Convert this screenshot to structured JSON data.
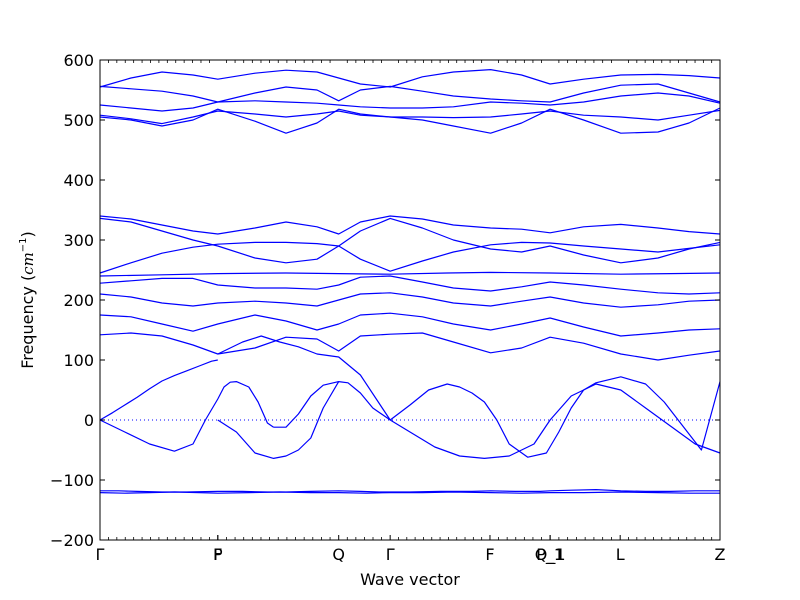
{
  "chart_data": {
    "type": "line",
    "xlabel": "Wave vector",
    "ylabel_prefix": "Frequency (",
    "ylabel_unit": "cm",
    "ylabel_exponent": "−1",
    "ylabel_suffix": ")",
    "ylim": [
      -200,
      600
    ],
    "yticks": [
      600,
      500,
      400,
      300,
      200,
      100,
      0,
      -100,
      -200
    ],
    "ytick_labels": [
      "600",
      "500",
      "400",
      "300",
      "200",
      "100",
      "0",
      "−100",
      "−200"
    ],
    "xlim": [
      0,
      1
    ],
    "kpoints": [
      {
        "label": "Γ",
        "x": 0.0
      },
      {
        "label": "F",
        "x": 0.19
      },
      {
        "label": "P",
        "x": 0.19
      },
      {
        "label": "Q",
        "x": 0.385
      },
      {
        "label": "Γ",
        "x": 0.468
      },
      {
        "label": "F",
        "x": 0.629
      },
      {
        "label": "P_1",
        "x": 0.726
      },
      {
        "label": "Q_1",
        "x": 0.726
      },
      {
        "label": "L",
        "x": 0.839
      },
      {
        "label": "Z",
        "x": 1.0
      }
    ],
    "zero_line": {
      "y": 0,
      "style": "dotted"
    },
    "series_color": "#0000ff",
    "series": [
      {
        "x": [
          0,
          0.03,
          0.06,
          0.1,
          0.14,
          0.19,
          0.23,
          0.27,
          0.3,
          0.34,
          0.385,
          0.42,
          0.45,
          0.468,
          0.5,
          0.55,
          0.6,
          0.63,
          0.67,
          0.71,
          0.726,
          0.76,
          0.8,
          0.84,
          0.88,
          0.92,
          0.96,
          1.0
        ],
        "values": [
          -118,
          -118,
          -119,
          -120,
          -120,
          -119,
          -119,
          -120,
          -120,
          -119,
          -118,
          -119,
          -120,
          -120,
          -120,
          -119,
          -119,
          -118,
          -119,
          -119,
          -118,
          -117,
          -116,
          -118,
          -119,
          -119,
          -118,
          -118
        ]
      },
      {
        "x": [
          0,
          0.04,
          0.08,
          0.12,
          0.16,
          0.19,
          0.24,
          0.29,
          0.34,
          0.385,
          0.43,
          0.468,
          0.52,
          0.57,
          0.63,
          0.68,
          0.726,
          0.78,
          0.84,
          0.9,
          0.95,
          1.0
        ],
        "values": [
          -121,
          -122,
          -121,
          -120,
          -121,
          -122,
          -121,
          -120,
          -121,
          -121,
          -122,
          -121,
          -121,
          -120,
          -121,
          -122,
          -121,
          -121,
          -120,
          -121,
          -122,
          -122
        ]
      },
      {
        "x": [
          0,
          0.02,
          0.04,
          0.06,
          0.08,
          0.1,
          0.12,
          0.14,
          0.16,
          0.18,
          0.19
        ],
        "values": [
          0,
          12,
          25,
          38,
          52,
          65,
          74,
          82,
          90,
          98,
          100
        ]
      },
      {
        "x": [
          0.19,
          0.23,
          0.26,
          0.29,
          0.32,
          0.35,
          0.385,
          0.42,
          0.468
        ],
        "values": [
          110,
          130,
          140,
          130,
          122,
          110,
          105,
          75,
          0
        ]
      },
      {
        "x": [
          0,
          0.04,
          0.08,
          0.12,
          0.15,
          0.17,
          0.19,
          0.2,
          0.21,
          0.22,
          0.24,
          0.255,
          0.27,
          0.28
        ],
        "values": [
          0,
          -20,
          -40,
          -52,
          -40,
          0,
          35,
          55,
          63,
          64,
          55,
          30,
          -5,
          -12
        ]
      },
      {
        "x": [
          0.28,
          0.3,
          0.32,
          0.34,
          0.36,
          0.385,
          0.4,
          0.42,
          0.44,
          0.468
        ],
        "values": [
          -12,
          -12,
          10,
          40,
          58,
          64,
          62,
          45,
          20,
          0
        ]
      },
      {
        "x": [
          0.19,
          0.22,
          0.25,
          0.28,
          0.3,
          0.32,
          0.34,
          0.36,
          0.385
        ],
        "values": [
          0,
          -20,
          -55,
          -64,
          -60,
          -50,
          -30,
          20,
          64
        ]
      },
      {
        "x": [
          0.468,
          0.5,
          0.53,
          0.56,
          0.58,
          0.6,
          0.62,
          0.64,
          0.66,
          0.69,
          0.72,
          0.74,
          0.76,
          0.78,
          0.8,
          0.84,
          0.88,
          0.91,
          0.94,
          0.97,
          1.0
        ],
        "values": [
          0,
          25,
          50,
          60,
          55,
          45,
          30,
          0,
          -40,
          -62,
          -55,
          -20,
          20,
          50,
          62,
          72,
          60,
          30,
          -10,
          -50,
          64
        ]
      },
      {
        "x": [
          0.468,
          0.5,
          0.54,
          0.58,
          0.62,
          0.66,
          0.7,
          0.726,
          0.76,
          0.8,
          0.84,
          0.88,
          0.92,
          0.96,
          1.0
        ],
        "values": [
          0,
          -20,
          -45,
          -60,
          -64,
          -60,
          -40,
          0,
          40,
          60,
          50,
          20,
          -10,
          -40,
          -55
        ]
      },
      {
        "x": [
          0,
          0.05,
          0.1,
          0.15,
          0.19,
          0.25,
          0.3,
          0.35,
          0.385,
          0.42,
          0.468,
          0.52,
          0.57,
          0.63,
          0.68,
          0.726,
          0.78,
          0.84,
          0.9,
          0.95,
          1.0
        ],
        "values": [
          142,
          145,
          140,
          125,
          110,
          120,
          138,
          135,
          115,
          140,
          143,
          145,
          130,
          112,
          120,
          138,
          128,
          110,
          100,
          108,
          115
        ]
      },
      {
        "x": [
          0,
          0.05,
          0.1,
          0.15,
          0.19,
          0.25,
          0.3,
          0.35,
          0.385,
          0.42,
          0.468,
          0.52,
          0.57,
          0.63,
          0.68,
          0.726,
          0.78,
          0.84,
          0.9,
          0.95,
          1.0
        ],
        "values": [
          175,
          172,
          160,
          148,
          160,
          175,
          165,
          150,
          160,
          175,
          178,
          172,
          160,
          150,
          160,
          170,
          155,
          140,
          145,
          150,
          152
        ]
      },
      {
        "x": [
          0,
          0.05,
          0.1,
          0.15,
          0.19,
          0.25,
          0.3,
          0.35,
          0.385,
          0.42,
          0.468,
          0.52,
          0.57,
          0.63,
          0.68,
          0.726,
          0.78,
          0.84,
          0.9,
          0.95,
          1.0
        ],
        "values": [
          210,
          205,
          195,
          190,
          195,
          198,
          195,
          190,
          200,
          210,
          212,
          205,
          195,
          190,
          198,
          205,
          195,
          188,
          192,
          198,
          200
        ]
      },
      {
        "x": [
          0,
          0.1,
          0.19,
          0.3,
          0.385,
          0.468,
          0.56,
          0.63,
          0.726,
          0.84,
          0.92,
          1.0
        ],
        "values": [
          240,
          242,
          244,
          245,
          244,
          243,
          245,
          246,
          245,
          243,
          244,
          245
        ]
      },
      {
        "x": [
          0,
          0.05,
          0.1,
          0.15,
          0.19,
          0.25,
          0.3,
          0.35,
          0.385,
          0.42,
          0.468,
          0.52,
          0.57,
          0.63,
          0.68,
          0.726,
          0.78,
          0.84,
          0.9,
          0.95,
          1.0
        ],
        "values": [
          228,
          232,
          236,
          236,
          225,
          220,
          220,
          218,
          225,
          238,
          240,
          230,
          220,
          215,
          222,
          230,
          225,
          218,
          212,
          210,
          212
        ]
      },
      {
        "x": [
          0,
          0.05,
          0.1,
          0.15,
          0.19,
          0.25,
          0.3,
          0.35,
          0.385,
          0.42,
          0.468,
          0.52,
          0.57,
          0.63,
          0.68,
          0.726,
          0.78,
          0.84,
          0.9,
          0.95,
          1.0
        ],
        "values": [
          245,
          262,
          278,
          288,
          293,
          296,
          296,
          294,
          290,
          268,
          248,
          265,
          280,
          292,
          296,
          295,
          290,
          285,
          280,
          286,
          292
        ]
      },
      {
        "x": [
          0,
          0.05,
          0.1,
          0.15,
          0.19,
          0.25,
          0.3,
          0.35,
          0.385,
          0.42,
          0.468,
          0.52,
          0.57,
          0.63,
          0.68,
          0.726,
          0.78,
          0.84,
          0.9,
          0.95,
          1.0
        ],
        "values": [
          340,
          335,
          325,
          315,
          310,
          320,
          330,
          322,
          310,
          330,
          340,
          335,
          325,
          320,
          318,
          312,
          322,
          326,
          320,
          314,
          310
        ]
      },
      {
        "x": [
          0,
          0.05,
          0.1,
          0.15,
          0.19,
          0.25,
          0.3,
          0.35,
          0.385,
          0.42,
          0.468,
          0.52,
          0.57,
          0.63,
          0.68,
          0.726,
          0.78,
          0.84,
          0.9,
          0.95,
          1.0
        ],
        "values": [
          336,
          330,
          315,
          300,
          290,
          270,
          262,
          268,
          290,
          315,
          336,
          320,
          300,
          285,
          280,
          290,
          275,
          262,
          270,
          285,
          296
        ]
      },
      {
        "x": [
          0,
          0.05,
          0.1,
          0.15,
          0.19,
          0.25,
          0.3,
          0.35,
          0.385,
          0.42,
          0.468,
          0.52,
          0.57,
          0.63,
          0.68,
          0.726,
          0.78,
          0.84,
          0.9,
          0.95,
          1.0
        ],
        "values": [
          555,
          570,
          580,
          575,
          568,
          578,
          583,
          580,
          570,
          560,
          555,
          572,
          580,
          584,
          575,
          560,
          568,
          575,
          576,
          574,
          570
        ]
      },
      {
        "x": [
          0,
          0.05,
          0.1,
          0.15,
          0.19,
          0.25,
          0.3,
          0.35,
          0.385,
          0.42,
          0.468,
          0.52,
          0.57,
          0.63,
          0.68,
          0.726,
          0.78,
          0.84,
          0.9,
          0.95,
          1.0
        ],
        "values": [
          556,
          552,
          548,
          540,
          530,
          545,
          555,
          550,
          532,
          550,
          556,
          548,
          540,
          535,
          532,
          530,
          545,
          558,
          560,
          545,
          530
        ]
      },
      {
        "x": [
          0,
          0.05,
          0.1,
          0.15,
          0.19,
          0.25,
          0.3,
          0.35,
          0.385,
          0.42,
          0.468,
          0.52,
          0.57,
          0.63,
          0.68,
          0.726,
          0.78,
          0.84,
          0.9,
          0.95,
          1.0
        ],
        "values": [
          525,
          520,
          515,
          520,
          530,
          532,
          530,
          528,
          525,
          522,
          520,
          520,
          522,
          530,
          528,
          525,
          530,
          540,
          545,
          540,
          528
        ]
      },
      {
        "x": [
          0,
          0.05,
          0.1,
          0.15,
          0.19,
          0.25,
          0.3,
          0.35,
          0.385,
          0.42,
          0.468,
          0.52,
          0.57,
          0.63,
          0.68,
          0.726,
          0.78,
          0.84,
          0.9,
          0.95,
          1.0
        ],
        "values": [
          505,
          500,
          490,
          500,
          518,
          498,
          478,
          495,
          518,
          510,
          505,
          500,
          490,
          478,
          495,
          518,
          500,
          478,
          480,
          495,
          520
        ]
      },
      {
        "x": [
          0,
          0.05,
          0.1,
          0.15,
          0.19,
          0.25,
          0.3,
          0.35,
          0.385,
          0.42,
          0.468,
          0.52,
          0.57,
          0.63,
          0.68,
          0.726,
          0.78,
          0.84,
          0.9,
          0.95,
          1.0
        ],
        "values": [
          508,
          502,
          494,
          505,
          515,
          510,
          505,
          510,
          515,
          508,
          505,
          505,
          504,
          505,
          510,
          515,
          508,
          505,
          500,
          508,
          516
        ]
      }
    ]
  }
}
